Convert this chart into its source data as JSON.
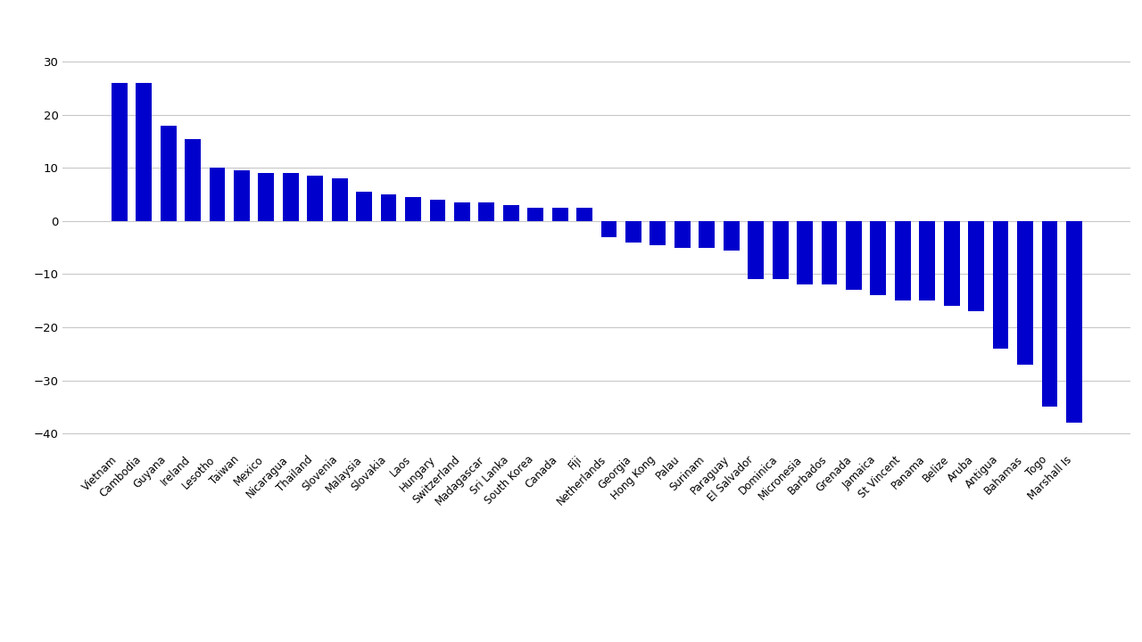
{
  "categories": [
    "Vietnam",
    "Cambodia",
    "Guyana",
    "Ireland",
    "Lesotho",
    "Taiwan",
    "Mexico",
    "Nicaragua",
    "Thailand",
    "Slovenia",
    "Malaysia",
    "Slovakia",
    "Laos",
    "Hungary",
    "Switzerland",
    "Madagascar",
    "Sri Lanka",
    "South Korea",
    "Canada",
    "Fiji",
    "Netherlands",
    "Georgia",
    "Hong Kong",
    "Palau",
    "Surinam",
    "Paraguay",
    "El Salvador",
    "Dominica",
    "Micronesia",
    "Barbados",
    "Grenada",
    "Jamaica",
    "St Vincent",
    "Panama",
    "Belize",
    "Aruba",
    "Antigua",
    "Bahamas",
    "Togo",
    "Marshall Is"
  ],
  "values": [
    26,
    26,
    18,
    15.5,
    10,
    9.5,
    9,
    9,
    8.5,
    8,
    5.5,
    5,
    4.5,
    4,
    3.5,
    3.5,
    3,
    2.5,
    2.5,
    2.5,
    -3,
    -4,
    -4.5,
    -5,
    -5,
    -5.5,
    -11,
    -11,
    -12,
    -12,
    -13,
    -14,
    -15,
    -15,
    -16,
    -17,
    -24,
    -27,
    -35,
    -38
  ],
  "bar_color": "#0000CC",
  "background_color": "#FFFFFF",
  "grid_color": "#C8C8C8",
  "ylim": [
    -43,
    38
  ],
  "yticks": [
    -40,
    -30,
    -20,
    -10,
    0,
    10,
    20,
    30
  ],
  "tick_fontsize": 8.5
}
